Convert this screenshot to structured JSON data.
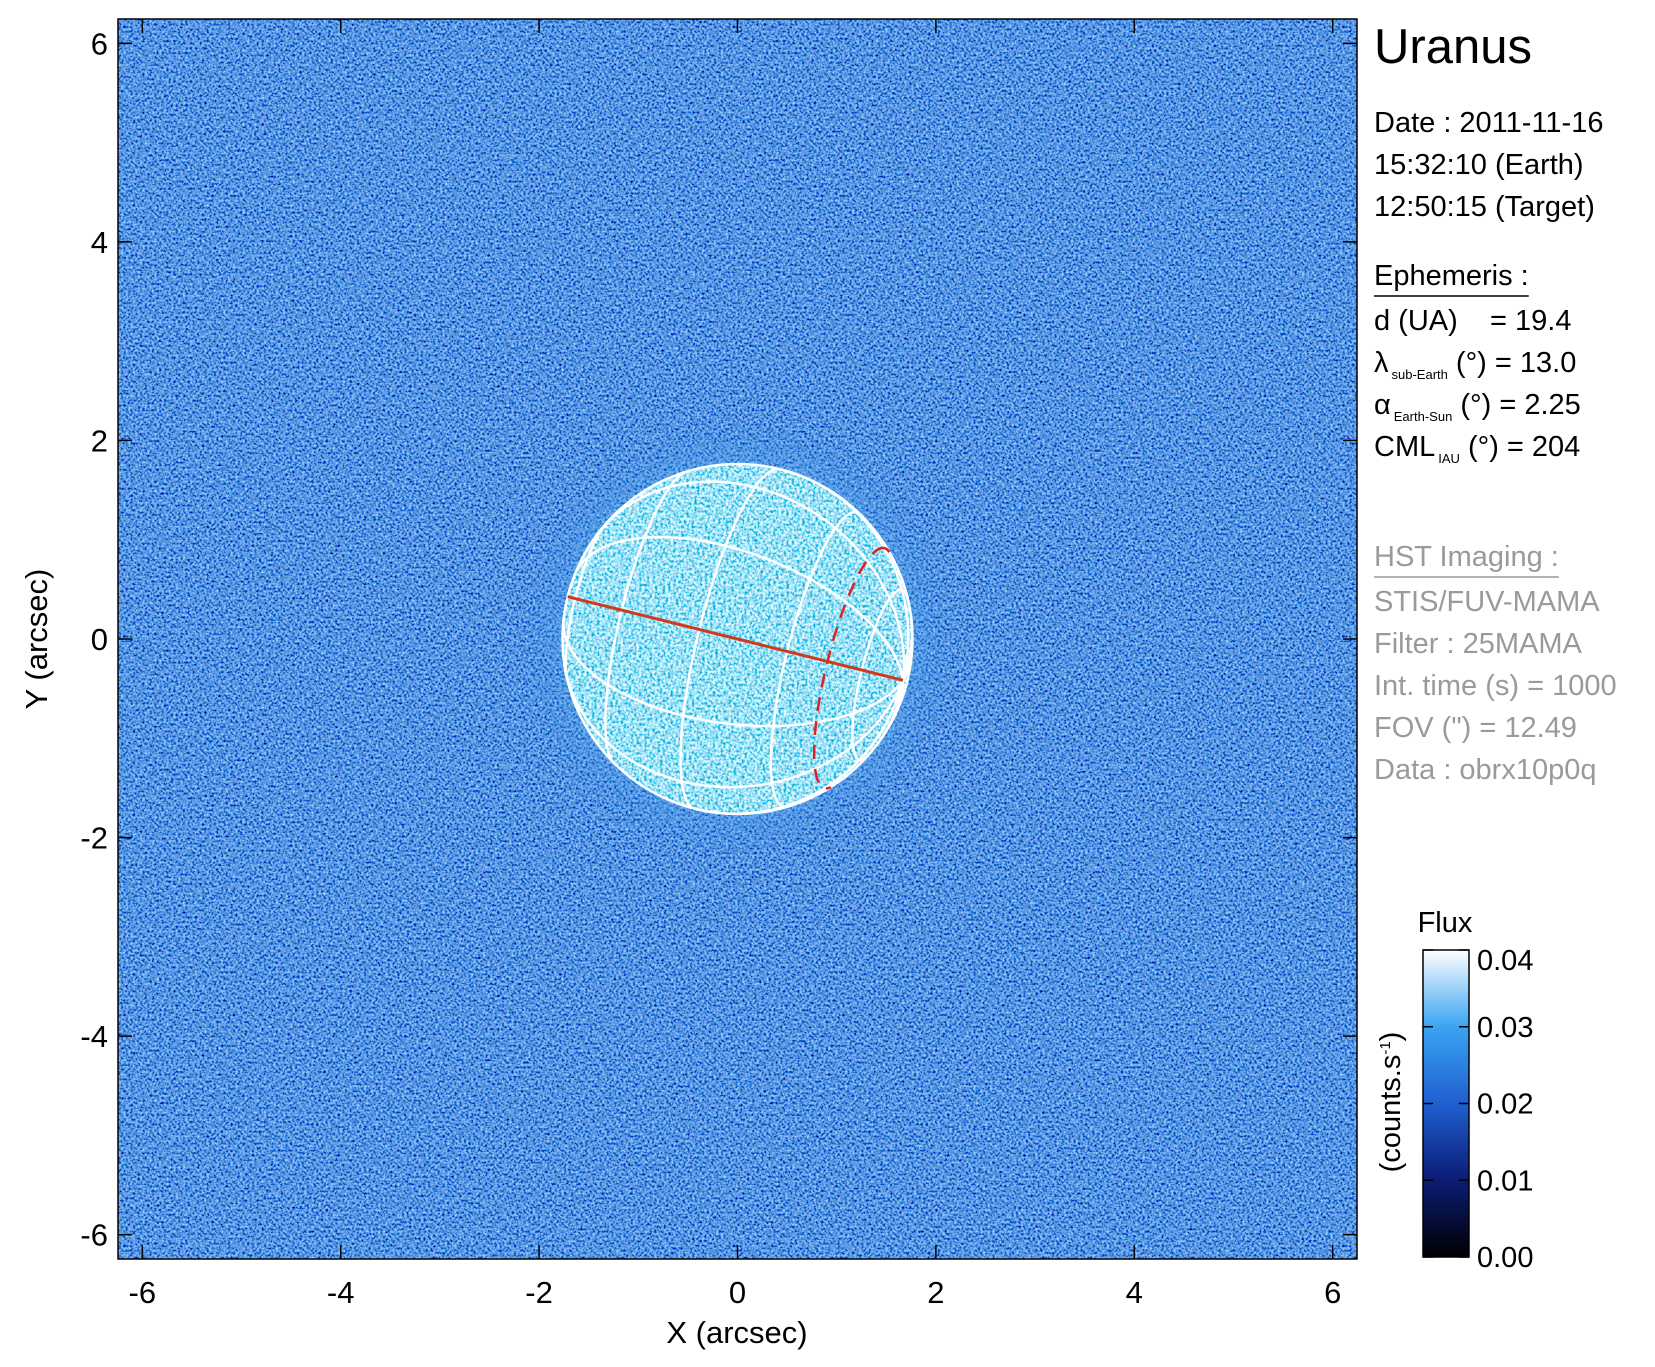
{
  "chart_data": {
    "type": "image",
    "title": "Uranus",
    "xlabel": "X (arcsec)",
    "ylabel": "Y (arcsec)",
    "xlim": [
      -6.245,
      6.245
    ],
    "ylim": [
      -6.245,
      6.245
    ],
    "xticks": [
      -6,
      -4,
      -2,
      0,
      2,
      4,
      6
    ],
    "yticks": [
      -6,
      -4,
      -2,
      0,
      2,
      4,
      6
    ],
    "colorbar": {
      "title": "Flux",
      "unit": [
        "(counts.s",
        "-1",
        ")"
      ],
      "clim": [
        0,
        0.04
      ],
      "ticks": [
        {
          "value": 0,
          "label": "0.00"
        },
        {
          "value": 0.01,
          "label": "0.01"
        },
        {
          "value": 0.02,
          "label": "0.02"
        },
        {
          "value": 0.03,
          "label": "0.03"
        },
        {
          "value": 0.04,
          "label": "0.04"
        }
      ],
      "colors": [
        "#000000",
        "#0b1c74",
        "#1f5fd0",
        "#3aa4f2",
        "#ffffff"
      ]
    },
    "info": {
      "date": [
        "Date : 2011-11-16",
        "15:32:10 (Earth)",
        "12:50:15 (Target)"
      ],
      "ephemeris": {
        "heading": "Ephemeris :",
        "lines": [
          {
            "text": "d (UA)    = 19.4"
          },
          {
            "text": "λ",
            "sub": "sub-Earth",
            "rest": " (°) = 13.0"
          },
          {
            "text": "α",
            "sub": "Earth-Sun",
            "rest": " (°) = 2.25"
          },
          {
            "text": "CML",
            "sub": "IAU",
            "rest": " (°) = 204"
          }
        ]
      },
      "imaging": {
        "heading": "HST Imaging :",
        "lines": [
          "STIS/FUV-MAMA",
          "Filter : 25MAMA",
          "Int. time (s) = 1000",
          "FOV (\") = 12.49",
          "Data : obrx10p0q"
        ]
      }
    }
  }
}
